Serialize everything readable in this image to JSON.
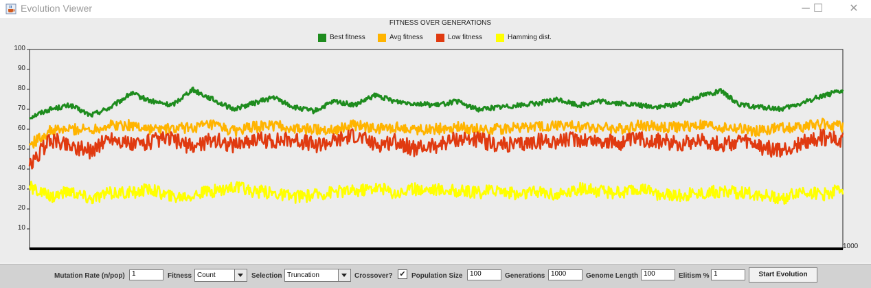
{
  "window": {
    "title": "Evolution Viewer",
    "minimize_glyph": "─",
    "maximize_glyph": "☐",
    "close_glyph": "✕",
    "app_icon": "java-cup-icon"
  },
  "chart_data": {
    "type": "line",
    "title": "FITNESS OVER GENERATIONS",
    "xlabel": "",
    "ylabel": "",
    "ylim": [
      0,
      100
    ],
    "xlim": [
      0,
      1000
    ],
    "yticks": [
      "100",
      "90",
      "80",
      "70",
      "60",
      "50",
      "40",
      "30",
      "20",
      "10"
    ],
    "xtick_labels": [
      "1000"
    ],
    "grid": false,
    "legend_position": "top-center",
    "x": [
      0,
      25,
      50,
      75,
      100,
      125,
      150,
      175,
      200,
      225,
      250,
      275,
      300,
      325,
      350,
      375,
      400,
      425,
      450,
      475,
      500,
      525,
      550,
      575,
      600,
      625,
      650,
      675,
      700,
      725,
      750,
      775,
      800,
      825,
      850,
      875,
      900,
      925,
      950,
      975,
      1000
    ],
    "series": [
      {
        "name": "Best fitness",
        "color": "#1e8c1e",
        "values": [
          66,
          70,
          72,
          67,
          71,
          78,
          74,
          72,
          80,
          75,
          70,
          73,
          76,
          71,
          69,
          74,
          72,
          77,
          74,
          73,
          72,
          74,
          70,
          71,
          72,
          73,
          75,
          72,
          74,
          73,
          72,
          71,
          73,
          77,
          79,
          72,
          71,
          70,
          73,
          77,
          79
        ]
      },
      {
        "name": "Avg fitness",
        "color": "#ffb400",
        "values": [
          52,
          59,
          60,
          60,
          62,
          62,
          60,
          60,
          61,
          62,
          59,
          61,
          62,
          60,
          60,
          60,
          62,
          60,
          61,
          60,
          60,
          61,
          60,
          60,
          61,
          61,
          62,
          61,
          61,
          60,
          62,
          61,
          61,
          62,
          61,
          60,
          59,
          61,
          61,
          63,
          61
        ]
      },
      {
        "name": "Low fitness",
        "color": "#e03a10",
        "values": [
          41,
          55,
          52,
          49,
          56,
          52,
          54,
          55,
          51,
          55,
          52,
          55,
          54,
          55,
          52,
          54,
          57,
          52,
          54,
          50,
          52,
          55,
          55,
          52,
          52,
          54,
          54,
          55,
          54,
          53,
          55,
          54,
          53,
          55,
          52,
          54,
          51,
          49,
          53,
          56,
          54
        ]
      },
      {
        "name": "Hamming dist.",
        "color": "#ffff00",
        "values": [
          31,
          26,
          29,
          25,
          28,
          28,
          30,
          26,
          27,
          29,
          31,
          29,
          28,
          26,
          27,
          29,
          29,
          31,
          28,
          30,
          30,
          29,
          28,
          30,
          27,
          29,
          27,
          30,
          29,
          28,
          30,
          27,
          27,
          28,
          29,
          28,
          27,
          25,
          29,
          27,
          30
        ]
      }
    ]
  },
  "controls": {
    "mutation_rate_label": "Mutation Rate (n/pop)",
    "mutation_rate_value": "1",
    "fitness_label": "Fitness",
    "fitness_value": "Count",
    "selection_label": "Selection",
    "selection_value": "Truncation",
    "crossover_label": "Crossover?",
    "crossover_checked": "✔",
    "population_label": "Population Size",
    "population_value": "100",
    "generations_label": "Generations",
    "generations_value": "1000",
    "genome_length_label": "Genome Length",
    "genome_length_value": "100",
    "elitism_label": "Elitism %",
    "elitism_value": "1",
    "start_button": "Start Evolution"
  }
}
